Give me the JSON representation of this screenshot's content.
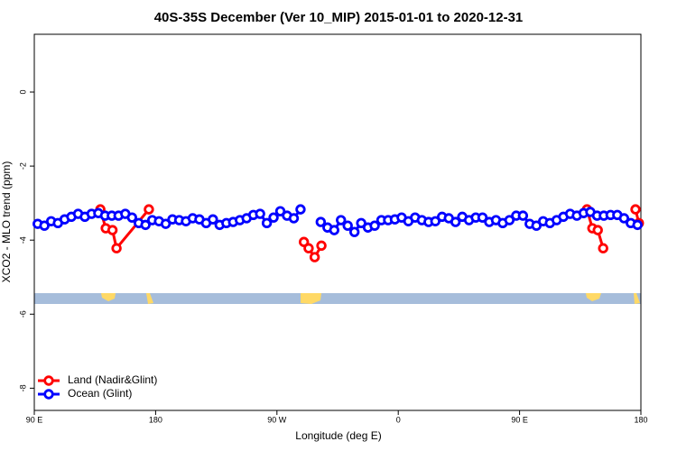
{
  "chart_data": {
    "type": "line",
    "title": "40S-35S December (Ver 10_MIP)   2015-01-01 to 2020-12-31",
    "x_label": "Longitude (deg E)",
    "y_label": "XCO2 - MLO trend (ppm)",
    "xlim": [
      90,
      540
    ],
    "xticks": [
      {
        "value": 90,
        "label": "90 E"
      },
      {
        "value": 180,
        "label": "180"
      },
      {
        "value": 270,
        "label": "90 W"
      },
      {
        "value": 360,
        "label": "0"
      },
      {
        "value": 450,
        "label": "90 E"
      },
      {
        "value": 540,
        "label": "180"
      }
    ],
    "ylim": [
      -8.6,
      1.56
    ],
    "yticks": [
      0,
      -2,
      -4,
      -6,
      -8
    ],
    "legend": "bottom-left",
    "series": [
      {
        "name": "Land (Nadir&Glint)",
        "color": "#ff0000",
        "x": [
          139,
          143,
          148,
          151,
          175,
          null,
          290,
          293.5,
          298,
          303,
          null,
          500,
          504,
          508,
          512,
          null,
          536,
          538.5
        ],
        "values": [
          -3.17,
          -3.68,
          -3.73,
          -4.22,
          -3.17,
          null,
          -4.05,
          -4.22,
          -4.46,
          -4.15,
          null,
          -3.17,
          -3.68,
          -3.73,
          -4.22,
          null,
          -3.17,
          -3.54
        ]
      },
      {
        "name": "Ocean (Glint)",
        "color": "#0000ff",
        "x": [
          92.5,
          97.5,
          102.5,
          107.5,
          112.5,
          117.5,
          122.5,
          127.5,
          132.5,
          137.5,
          142.5,
          147.5,
          152.5,
          157.5,
          162.5,
          167.5,
          172.5,
          177.5,
          182.5,
          187.5,
          192.5,
          197.5,
          202.5,
          207.5,
          212.5,
          217.5,
          222.5,
          227.5,
          232.5,
          237.5,
          242.5,
          247.5,
          252.5,
          257.5,
          262.5,
          267.5,
          272.5,
          277.5,
          282.5,
          287.5,
          292.5,
          297.5,
          302.5,
          307.5,
          312.5,
          317.5,
          322.5,
          327.5,
          332.5,
          337.5,
          342.5,
          347.5,
          352.5,
          357.5,
          362.5,
          367.5,
          372.5,
          377.5,
          382.5,
          387.5,
          392.5,
          397.5,
          402.5,
          407.5,
          412.5,
          417.5,
          422.5,
          427.5,
          432.5,
          437.5,
          442.5,
          447.5,
          452.5,
          457.5,
          462.5,
          467.5,
          472.5,
          477.5,
          482.5,
          487.5,
          492.5,
          497.5,
          502.5,
          507.5,
          512.5,
          517.5,
          522.5,
          527.5,
          532.5,
          537.5
        ],
        "values": [
          -3.56,
          -3.61,
          -3.49,
          -3.54,
          -3.44,
          -3.37,
          -3.29,
          -3.37,
          -3.29,
          -3.27,
          -3.34,
          -3.34,
          -3.34,
          -3.29,
          -3.39,
          -3.54,
          -3.59,
          -3.46,
          -3.49,
          -3.56,
          -3.44,
          -3.46,
          -3.49,
          -3.41,
          -3.44,
          -3.54,
          -3.44,
          -3.59,
          -3.54,
          -3.51,
          -3.46,
          -3.41,
          -3.32,
          -3.29,
          -3.54,
          -3.39,
          -3.22,
          -3.34,
          -3.41,
          -3.17,
          null,
          null,
          -3.51,
          -3.66,
          -3.73,
          -3.46,
          -3.61,
          -3.78,
          -3.54,
          -3.66,
          -3.61,
          -3.46,
          -3.46,
          -3.44,
          -3.39,
          -3.49,
          -3.39,
          -3.46,
          -3.51,
          -3.49,
          -3.37,
          -3.41,
          -3.51,
          -3.37,
          -3.46,
          -3.39,
          -3.39,
          -3.51,
          -3.46,
          -3.54,
          -3.46,
          -3.34,
          -3.34,
          -3.56,
          -3.61,
          -3.49,
          -3.54,
          -3.46,
          -3.37,
          -3.29,
          -3.34,
          -3.27,
          -3.24,
          -3.34,
          -3.34,
          -3.32,
          -3.32,
          -3.41,
          -3.54,
          -3.59
        ]
      }
    ]
  }
}
